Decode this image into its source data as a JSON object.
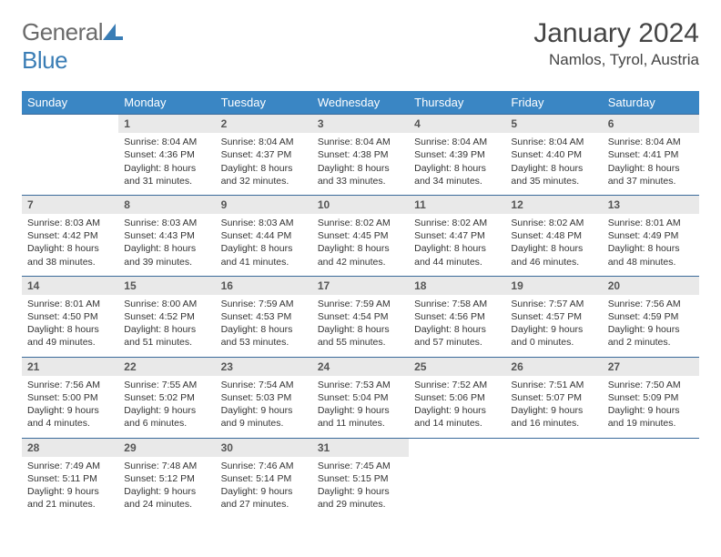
{
  "logo": {
    "gray": "General",
    "blue": "Blue"
  },
  "title": "January 2024",
  "location": "Namlos, Tyrol, Austria",
  "colors": {
    "header_bg": "#3a86c4",
    "header_text": "#ffffff",
    "daynum_bg": "#e9e9e9",
    "border": "#3a6a9a",
    "logo_gray": "#6b6b6b",
    "logo_blue": "#3a7db5"
  },
  "weekdays": [
    "Sunday",
    "Monday",
    "Tuesday",
    "Wednesday",
    "Thursday",
    "Friday",
    "Saturday"
  ],
  "weeks": [
    {
      "nums": [
        "",
        "1",
        "2",
        "3",
        "4",
        "5",
        "6"
      ],
      "cells": [
        null,
        {
          "sunrise": "Sunrise: 8:04 AM",
          "sunset": "Sunset: 4:36 PM",
          "day1": "Daylight: 8 hours",
          "day2": "and 31 minutes."
        },
        {
          "sunrise": "Sunrise: 8:04 AM",
          "sunset": "Sunset: 4:37 PM",
          "day1": "Daylight: 8 hours",
          "day2": "and 32 minutes."
        },
        {
          "sunrise": "Sunrise: 8:04 AM",
          "sunset": "Sunset: 4:38 PM",
          "day1": "Daylight: 8 hours",
          "day2": "and 33 minutes."
        },
        {
          "sunrise": "Sunrise: 8:04 AM",
          "sunset": "Sunset: 4:39 PM",
          "day1": "Daylight: 8 hours",
          "day2": "and 34 minutes."
        },
        {
          "sunrise": "Sunrise: 8:04 AM",
          "sunset": "Sunset: 4:40 PM",
          "day1": "Daylight: 8 hours",
          "day2": "and 35 minutes."
        },
        {
          "sunrise": "Sunrise: 8:04 AM",
          "sunset": "Sunset: 4:41 PM",
          "day1": "Daylight: 8 hours",
          "day2": "and 37 minutes."
        }
      ]
    },
    {
      "nums": [
        "7",
        "8",
        "9",
        "10",
        "11",
        "12",
        "13"
      ],
      "cells": [
        {
          "sunrise": "Sunrise: 8:03 AM",
          "sunset": "Sunset: 4:42 PM",
          "day1": "Daylight: 8 hours",
          "day2": "and 38 minutes."
        },
        {
          "sunrise": "Sunrise: 8:03 AM",
          "sunset": "Sunset: 4:43 PM",
          "day1": "Daylight: 8 hours",
          "day2": "and 39 minutes."
        },
        {
          "sunrise": "Sunrise: 8:03 AM",
          "sunset": "Sunset: 4:44 PM",
          "day1": "Daylight: 8 hours",
          "day2": "and 41 minutes."
        },
        {
          "sunrise": "Sunrise: 8:02 AM",
          "sunset": "Sunset: 4:45 PM",
          "day1": "Daylight: 8 hours",
          "day2": "and 42 minutes."
        },
        {
          "sunrise": "Sunrise: 8:02 AM",
          "sunset": "Sunset: 4:47 PM",
          "day1": "Daylight: 8 hours",
          "day2": "and 44 minutes."
        },
        {
          "sunrise": "Sunrise: 8:02 AM",
          "sunset": "Sunset: 4:48 PM",
          "day1": "Daylight: 8 hours",
          "day2": "and 46 minutes."
        },
        {
          "sunrise": "Sunrise: 8:01 AM",
          "sunset": "Sunset: 4:49 PM",
          "day1": "Daylight: 8 hours",
          "day2": "and 48 minutes."
        }
      ]
    },
    {
      "nums": [
        "14",
        "15",
        "16",
        "17",
        "18",
        "19",
        "20"
      ],
      "cells": [
        {
          "sunrise": "Sunrise: 8:01 AM",
          "sunset": "Sunset: 4:50 PM",
          "day1": "Daylight: 8 hours",
          "day2": "and 49 minutes."
        },
        {
          "sunrise": "Sunrise: 8:00 AM",
          "sunset": "Sunset: 4:52 PM",
          "day1": "Daylight: 8 hours",
          "day2": "and 51 minutes."
        },
        {
          "sunrise": "Sunrise: 7:59 AM",
          "sunset": "Sunset: 4:53 PM",
          "day1": "Daylight: 8 hours",
          "day2": "and 53 minutes."
        },
        {
          "sunrise": "Sunrise: 7:59 AM",
          "sunset": "Sunset: 4:54 PM",
          "day1": "Daylight: 8 hours",
          "day2": "and 55 minutes."
        },
        {
          "sunrise": "Sunrise: 7:58 AM",
          "sunset": "Sunset: 4:56 PM",
          "day1": "Daylight: 8 hours",
          "day2": "and 57 minutes."
        },
        {
          "sunrise": "Sunrise: 7:57 AM",
          "sunset": "Sunset: 4:57 PM",
          "day1": "Daylight: 9 hours",
          "day2": "and 0 minutes."
        },
        {
          "sunrise": "Sunrise: 7:56 AM",
          "sunset": "Sunset: 4:59 PM",
          "day1": "Daylight: 9 hours",
          "day2": "and 2 minutes."
        }
      ]
    },
    {
      "nums": [
        "21",
        "22",
        "23",
        "24",
        "25",
        "26",
        "27"
      ],
      "cells": [
        {
          "sunrise": "Sunrise: 7:56 AM",
          "sunset": "Sunset: 5:00 PM",
          "day1": "Daylight: 9 hours",
          "day2": "and 4 minutes."
        },
        {
          "sunrise": "Sunrise: 7:55 AM",
          "sunset": "Sunset: 5:02 PM",
          "day1": "Daylight: 9 hours",
          "day2": "and 6 minutes."
        },
        {
          "sunrise": "Sunrise: 7:54 AM",
          "sunset": "Sunset: 5:03 PM",
          "day1": "Daylight: 9 hours",
          "day2": "and 9 minutes."
        },
        {
          "sunrise": "Sunrise: 7:53 AM",
          "sunset": "Sunset: 5:04 PM",
          "day1": "Daylight: 9 hours",
          "day2": "and 11 minutes."
        },
        {
          "sunrise": "Sunrise: 7:52 AM",
          "sunset": "Sunset: 5:06 PM",
          "day1": "Daylight: 9 hours",
          "day2": "and 14 minutes."
        },
        {
          "sunrise": "Sunrise: 7:51 AM",
          "sunset": "Sunset: 5:07 PM",
          "day1": "Daylight: 9 hours",
          "day2": "and 16 minutes."
        },
        {
          "sunrise": "Sunrise: 7:50 AM",
          "sunset": "Sunset: 5:09 PM",
          "day1": "Daylight: 9 hours",
          "day2": "and 19 minutes."
        }
      ]
    },
    {
      "nums": [
        "28",
        "29",
        "30",
        "31",
        "",
        "",
        ""
      ],
      "cells": [
        {
          "sunrise": "Sunrise: 7:49 AM",
          "sunset": "Sunset: 5:11 PM",
          "day1": "Daylight: 9 hours",
          "day2": "and 21 minutes."
        },
        {
          "sunrise": "Sunrise: 7:48 AM",
          "sunset": "Sunset: 5:12 PM",
          "day1": "Daylight: 9 hours",
          "day2": "and 24 minutes."
        },
        {
          "sunrise": "Sunrise: 7:46 AM",
          "sunset": "Sunset: 5:14 PM",
          "day1": "Daylight: 9 hours",
          "day2": "and 27 minutes."
        },
        {
          "sunrise": "Sunrise: 7:45 AM",
          "sunset": "Sunset: 5:15 PM",
          "day1": "Daylight: 9 hours",
          "day2": "and 29 minutes."
        },
        null,
        null,
        null
      ]
    }
  ]
}
